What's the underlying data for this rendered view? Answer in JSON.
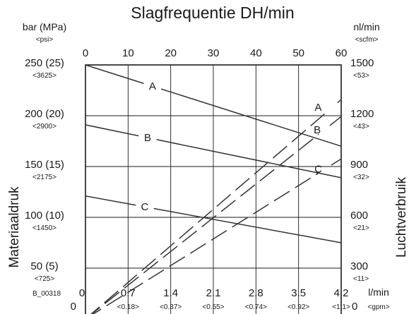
{
  "chart_data": {
    "type": "line",
    "title": "Slagfrequentie DH/min",
    "code": "B_00318",
    "top_axis": {
      "ticks": [
        "0",
        "10",
        "20",
        "30",
        "40",
        "50",
        "60"
      ],
      "range": [
        0,
        60
      ]
    },
    "bottom_axis": {
      "unit": "l/min",
      "unit_alt": "<gpm>",
      "ticks": [
        "0",
        "0.7",
        "1.4",
        "2.1",
        "2.8",
        "3.5",
        "4.2"
      ],
      "ticks_alt": [
        "",
        "<0.18>",
        "<0.37>",
        "<0.55>",
        "<0.74>",
        "<0.92>",
        "<1.1>"
      ],
      "range": [
        0,
        4.2
      ]
    },
    "left_axis": {
      "label": "Materiaaldruk",
      "unit": "bar (MPa)",
      "unit_alt": "<psi>",
      "ticks": [
        "0",
        "50 (5)",
        "100 (10)",
        "150 (15)",
        "200 (20)",
        "250 (25)"
      ],
      "ticks_alt": [
        "",
        "<725>",
        "<1450>",
        "<2175>",
        "<2900>",
        "<3625>"
      ],
      "range": [
        0,
        250
      ]
    },
    "right_axis": {
      "label": "Luchtverbruik",
      "unit": "nl/min",
      "unit_alt": "<scfm>",
      "ticks": [
        "0",
        "300",
        "600",
        "900",
        "1200",
        "1500"
      ],
      "ticks_alt": [
        "",
        "<11>",
        "<21>",
        "<32>",
        "<43>",
        "<53>"
      ],
      "range": [
        0,
        1500
      ]
    },
    "pressure_series": [
      {
        "name": "A",
        "x": [
          0,
          60
        ],
        "y": [
          250,
          170
        ]
      },
      {
        "name": "B",
        "x": [
          0,
          60
        ],
        "y": [
          191,
          139
        ]
      },
      {
        "name": "C",
        "x": [
          0,
          60
        ],
        "y": [
          121,
          75
        ]
      }
    ],
    "air_series": [
      {
        "name": "A",
        "x": [
          0,
          60
        ],
        "y": [
          0,
          1295
        ]
      },
      {
        "name": "B",
        "x": [
          0,
          60
        ],
        "y": [
          0,
          1195
        ]
      },
      {
        "name": "C",
        "x": [
          0,
          60
        ],
        "y": [
          0,
          945
        ]
      }
    ],
    "grid": true
  }
}
